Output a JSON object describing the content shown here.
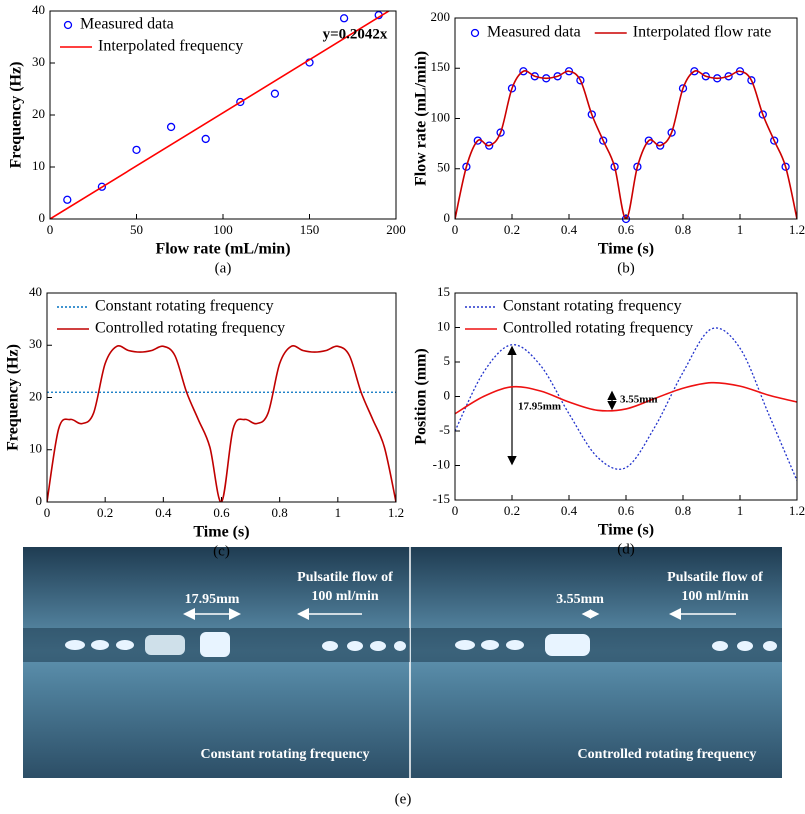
{
  "chart_data": [
    {
      "type": "line",
      "xlabel": "Flow rate (mL/min)",
      "ylabel": "Frequency (Hz)",
      "caption": "(a)",
      "xlim": [
        0,
        200
      ],
      "xticks": [
        0,
        50,
        100,
        150,
        200
      ],
      "ylim": [
        0,
        40
      ],
      "yticks": [
        0,
        10,
        20,
        30,
        40
      ],
      "legend": "upper left",
      "annotations": [
        "y=0.2042x"
      ],
      "series": [
        {
          "name": "Measured data",
          "color": "#0000ff",
          "style": "markers",
          "x": [
            10,
            30,
            50,
            70,
            90,
            110,
            130,
            150,
            170,
            190
          ],
          "values": [
            3.7,
            6.2,
            13.3,
            17.7,
            15.4,
            22.5,
            24.1,
            30.1,
            38.6,
            39.2
          ]
        },
        {
          "name": "Interpolated frequency",
          "color": "#ff0000",
          "style": "solid",
          "x": [
            0,
            195.9
          ],
          "values": [
            0,
            40
          ]
        }
      ]
    },
    {
      "type": "line",
      "xlabel": "Time (s)",
      "ylabel": "Flow rate (mL/min)",
      "caption": "(b)",
      "xlim": [
        0,
        1.2
      ],
      "xticks": [
        0,
        0.2,
        0.4,
        0.6,
        0.8,
        1,
        1.2
      ],
      "ylim": [
        0,
        200
      ],
      "yticks": [
        0,
        50,
        100,
        150,
        200
      ],
      "legend": "top",
      "series": [
        {
          "name": "Measured data",
          "color": "#0000ff",
          "style": "markers",
          "x": [
            0.04,
            0.08,
            0.12,
            0.16,
            0.2,
            0.24,
            0.28,
            0.32,
            0.36,
            0.4,
            0.44,
            0.48,
            0.52,
            0.56,
            0.6,
            0.64,
            0.68,
            0.72,
            0.76,
            0.8,
            0.84,
            0.88,
            0.92,
            0.96,
            1,
            1.04,
            1.08,
            1.12,
            1.16
          ],
          "values": [
            52,
            78,
            73,
            86,
            130,
            147,
            142,
            140,
            142,
            147,
            138,
            104,
            78,
            52,
            0,
            52,
            78,
            73,
            86,
            130,
            147,
            142,
            140,
            142,
            147,
            138,
            104,
            78,
            52
          ]
        },
        {
          "name": "Interpolated flow rate",
          "color": "#cc0000",
          "style": "smooth",
          "x": [
            0,
            0.04,
            0.08,
            0.12,
            0.16,
            0.2,
            0.24,
            0.28,
            0.32,
            0.36,
            0.4,
            0.44,
            0.48,
            0.52,
            0.56,
            0.6,
            0.64,
            0.68,
            0.72,
            0.76,
            0.8,
            0.84,
            0.88,
            0.92,
            0.96,
            1,
            1.04,
            1.08,
            1.12,
            1.16,
            1.2
          ],
          "values": [
            0,
            52,
            78,
            73,
            86,
            130,
            147,
            142,
            140,
            142,
            147,
            138,
            104,
            78,
            52,
            0,
            52,
            78,
            73,
            86,
            130,
            147,
            142,
            140,
            142,
            147,
            138,
            104,
            78,
            52,
            0
          ]
        }
      ]
    },
    {
      "type": "line",
      "xlabel": "Time (s)",
      "ylabel": "Frequency (Hz)",
      "caption": "(c)",
      "xlim": [
        0,
        1.2
      ],
      "xticks": [
        0,
        0.2,
        0.4,
        0.6,
        0.8,
        1,
        1.2
      ],
      "ylim": [
        0,
        40
      ],
      "yticks": [
        0,
        10,
        20,
        30,
        40
      ],
      "legend": "upper left",
      "series": [
        {
          "name": "Constant rotating frequency",
          "color": "#0070c0",
          "style": "dotted",
          "x": [
            0,
            1.2
          ],
          "values": [
            21,
            21
          ]
        },
        {
          "name": "Controlled rotating frequency",
          "color": "#c00000",
          "style": "smooth",
          "x": [
            0,
            0.04,
            0.08,
            0.12,
            0.16,
            0.2,
            0.24,
            0.28,
            0.32,
            0.36,
            0.4,
            0.44,
            0.48,
            0.52,
            0.56,
            0.6,
            0.64,
            0.68,
            0.72,
            0.76,
            0.8,
            0.84,
            0.88,
            0.92,
            0.96,
            1,
            1.04,
            1.08,
            1.12,
            1.16,
            1.2
          ],
          "values": [
            0,
            14,
            15.8,
            15,
            17,
            26.5,
            29.8,
            29,
            28.7,
            29,
            29.8,
            28,
            21,
            15.8,
            10.5,
            0,
            14,
            15.8,
            15,
            17,
            26.5,
            29.8,
            29,
            28.7,
            29,
            29.8,
            28,
            21,
            15.8,
            10.5,
            0
          ]
        }
      ]
    },
    {
      "type": "line",
      "xlabel": "Time (s)",
      "ylabel": "Position (mm)",
      "caption": "(d)",
      "xlim": [
        0,
        1.2
      ],
      "xticks": [
        0,
        0.2,
        0.4,
        0.6,
        0.8,
        1,
        1.2
      ],
      "ylim": [
        -15,
        15
      ],
      "yticks": [
        -15,
        -10,
        -5,
        0,
        5,
        10,
        15
      ],
      "legend": "upper left",
      "annotations": [
        "17.95mm",
        "3.55mm"
      ],
      "series": [
        {
          "name": "Constant rotating frequency",
          "color": "#2233cc",
          "style": "dotted-smooth",
          "x": [
            0,
            0.1,
            0.2,
            0.3,
            0.4,
            0.5,
            0.6,
            0.7,
            0.8,
            0.9,
            1,
            1.1,
            1.2
          ],
          "values": [
            -5,
            3.5,
            7.5,
            4.5,
            -2.5,
            -8.8,
            -10.3,
            -4.5,
            3.5,
            9.8,
            7,
            -2.5,
            -12.2
          ]
        },
        {
          "name": "Controlled rotating frequency",
          "color": "#ee1111",
          "style": "smooth",
          "x": [
            0,
            0.1,
            0.2,
            0.3,
            0.4,
            0.5,
            0.6,
            0.7,
            0.8,
            0.9,
            1,
            1.1,
            1.2
          ],
          "values": [
            -2.5,
            0,
            1.4,
            0.8,
            -0.8,
            -2,
            -1.8,
            -0.3,
            1.2,
            2,
            1.5,
            0.2,
            -0.8
          ]
        }
      ]
    }
  ],
  "photos": [
    {
      "length": "17.95mm",
      "flow_line1": "Pulsatile flow of",
      "flow_line2": "100 ml/min",
      "label": "Constant rotating frequency"
    },
    {
      "length": "3.55mm",
      "flow_line1": "Pulsatile flow of",
      "flow_line2": "100 ml/min",
      "label": "Controlled rotating frequency"
    }
  ],
  "photos_caption": "(e)"
}
